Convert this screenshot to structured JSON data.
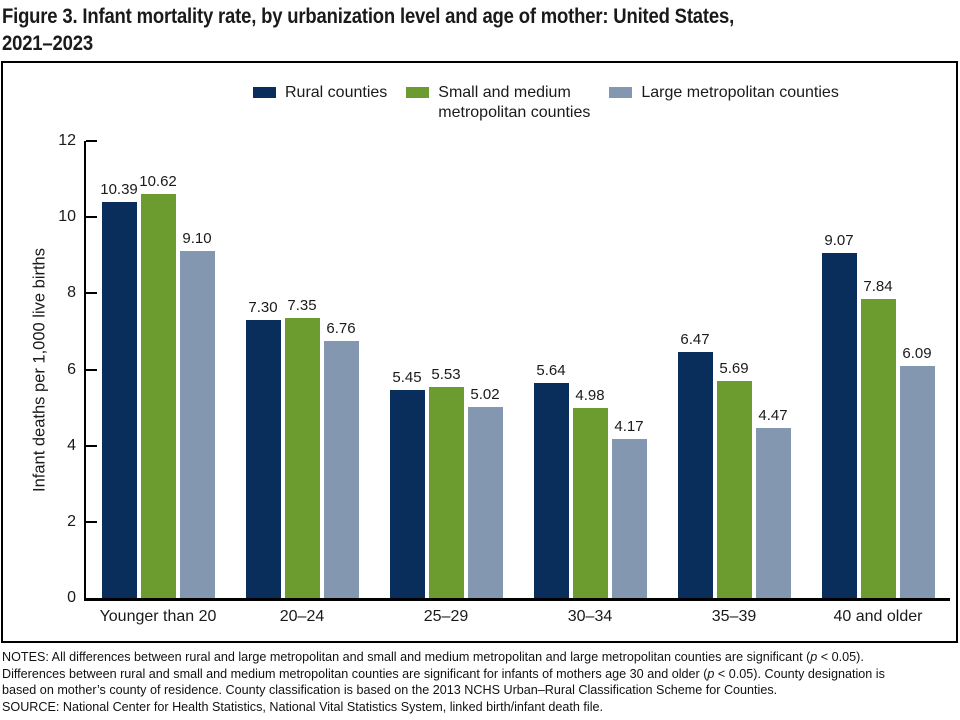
{
  "title": {
    "line1": "Figure 3. Infant mortality rate, by urbanization level and age of mother: United States,",
    "line2": "2021–2023"
  },
  "legend": [
    {
      "label": "Rural counties",
      "color": "#0a2e5b"
    },
    {
      "label": "Small and medium\nmetropolitan counties",
      "color": "#6c9c2f"
    },
    {
      "label": "Large metropolitan counties",
      "color": "#8497b0"
    }
  ],
  "y_axis": {
    "label": "Infant deaths per 1,000 live births",
    "ticks": [
      0,
      2,
      4,
      6,
      8,
      10,
      12
    ]
  },
  "chart_data": {
    "type": "bar",
    "title": "Figure 3. Infant mortality rate, by urbanization level and age of mother: United States, 2021–2023",
    "xlabel": "",
    "ylabel": "Infant deaths per 1,000 live births",
    "ylim": [
      0,
      12
    ],
    "grid": false,
    "legend_position": "top",
    "value_label_format": "2-decimals",
    "categories": [
      "Younger than 20",
      "20–24",
      "25–29",
      "30–34",
      "35–39",
      "40 and older"
    ],
    "series": [
      {
        "name": "Rural counties",
        "color": "#0a2e5b",
        "values": [
          10.39,
          7.3,
          5.45,
          5.64,
          6.47,
          9.07
        ]
      },
      {
        "name": "Small and medium metropolitan counties",
        "color": "#6c9c2f",
        "values": [
          10.62,
          7.35,
          5.53,
          4.98,
          5.69,
          7.84
        ]
      },
      {
        "name": "Large metropolitan counties",
        "color": "#8497b0",
        "values": [
          9.1,
          6.76,
          5.02,
          4.17,
          4.47,
          6.09
        ]
      }
    ]
  },
  "notes": {
    "lines": [
      [
        {
          "t": "NOTES: All differences between rural and large metropolitan and small and medium metropolitan and large metropolitan counties are significant ("
        },
        {
          "t": "p",
          "i": true
        },
        {
          "t": " < 0.05)."
        }
      ],
      [
        {
          "t": "Differences between rural and small and medium metropolitan counties are significant for infants of mothers age 30 and older ("
        },
        {
          "t": "p",
          "i": true
        },
        {
          "t": " < 0.05). County designation is"
        }
      ],
      [
        {
          "t": "based on mother’s county of residence. County classification is based on the 2013 NCHS Urban–Rural Classification Scheme for Counties."
        }
      ],
      [
        {
          "t": "SOURCE: National Center for Health Statistics, National Vital Statistics System, linked birth/infant death file."
        }
      ]
    ]
  }
}
